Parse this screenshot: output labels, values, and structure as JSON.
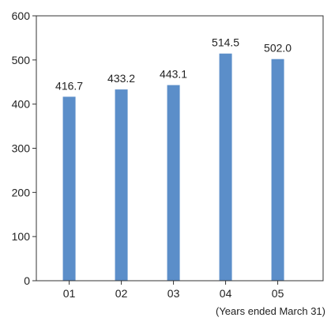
{
  "chart_data": {
    "type": "bar",
    "categories": [
      "01",
      "02",
      "03",
      "04",
      "05"
    ],
    "values": [
      416.7,
      433.2,
      443.1,
      514.5,
      502.0
    ],
    "value_labels": [
      "416.7",
      "433.2",
      "443.1",
      "514.5",
      "502.0"
    ],
    "title": "",
    "xlabel": "",
    "ylabel": "",
    "ylim": [
      0,
      600
    ],
    "yticks": [
      0,
      100,
      200,
      300,
      400,
      500,
      600
    ],
    "grid": false,
    "bar_color": "#5b8ec9",
    "note": "(Years ended March 31)"
  }
}
